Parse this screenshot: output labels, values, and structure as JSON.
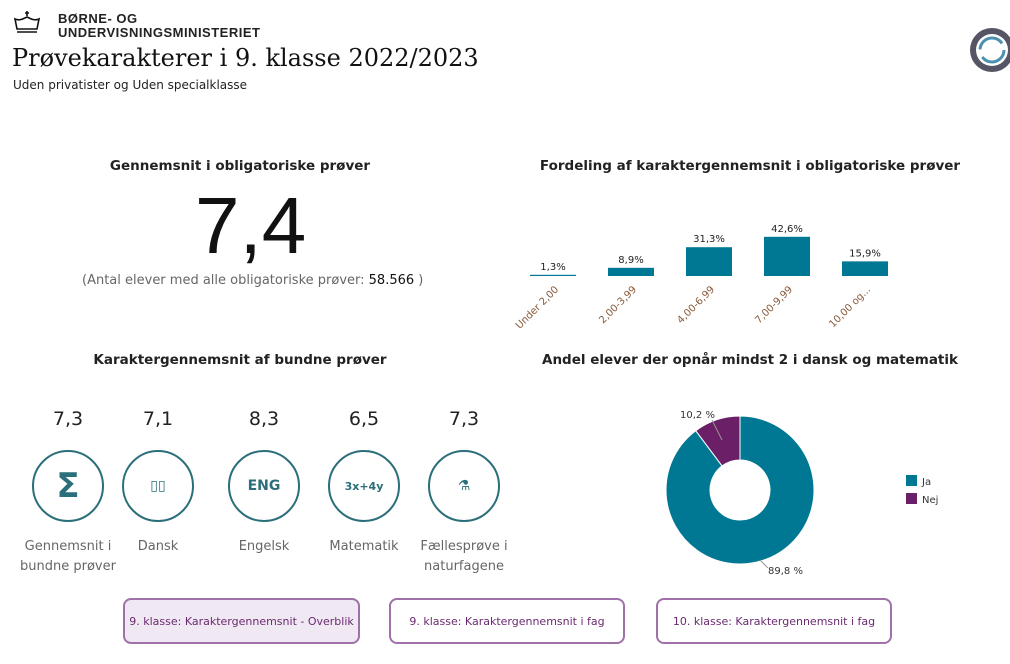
{
  "header": {
    "ministry_line1": "BØRNE- OG",
    "ministry_line2": "UNDERVISNINGSMINISTERIET",
    "title": "Prøvekarakterer i 9. klasse 2022/2023",
    "subtitle": "Uden privatister og Uden specialklasse"
  },
  "kpi": {
    "heading": "Gennemsnit i obligatoriske prøver",
    "value": "7,4",
    "count_label": "(Antal elever med alle obligatoriske prøver:",
    "count_value": "58.566",
    "count_close": ")"
  },
  "bound": {
    "heading": "Karaktergennemsnit af bundne prøver",
    "items": [
      {
        "value": "7,3",
        "label": "Gennemsnit i bundne prøver",
        "icon": "sigma-icon"
      },
      {
        "value": "7,1",
        "label": "Dansk",
        "icon": "book-icon"
      },
      {
        "value": "8,3",
        "label": "Engelsk",
        "icon": "english-book-icon"
      },
      {
        "value": "6,5",
        "label": "Matematik",
        "icon": "math-board-icon"
      },
      {
        "value": "7,3",
        "label": "Fællesprøve i naturfagene",
        "icon": "science-icon"
      }
    ]
  },
  "chart_data": [
    {
      "type": "bar",
      "title": "Fordeling af karaktergennemsnit i obligatoriske prøver",
      "categories": [
        "Under 2,00",
        "2,00-3,99",
        "4,00-6,99",
        "7,00-9,99",
        "10,00 og..."
      ],
      "values": [
        1.3,
        8.9,
        31.3,
        42.6,
        15.9
      ],
      "labels": [
        "1,3%",
        "8,9%",
        "31,3%",
        "42,6%",
        "15,9%"
      ],
      "color": "#007894"
    },
    {
      "type": "pie",
      "title": "Andel elever der opnår mindst 2 i dansk og matematik",
      "slices": [
        {
          "name": "Ja",
          "value": 89.8,
          "label": "89,8 %",
          "color": "#007894"
        },
        {
          "name": "Nej",
          "value": 10.2,
          "label": "10,2 %",
          "color": "#6b1f66"
        }
      ],
      "legend": "right"
    }
  ],
  "buttons": [
    "9. klasse: Karaktergennemsnit - Overblik",
    "9. klasse: Karaktergennemsnit i fag",
    "10. klasse: Karaktergennemsnit i fag"
  ]
}
